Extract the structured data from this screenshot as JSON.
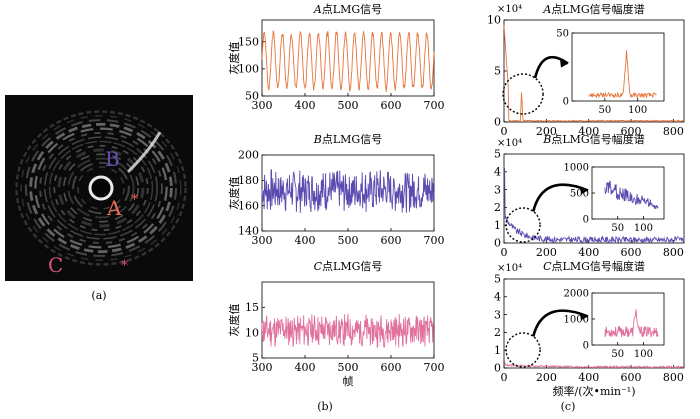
{
  "figure_labels": {
    "a": "(a)",
    "b": "(b)",
    "c": "(c)"
  },
  "colors": {
    "a": "#e8743b",
    "b": "#5b4bb0",
    "c": "#e0709c",
    "zoom": "#000000",
    "image_bg": "#0a0a0a"
  },
  "image_panel": {
    "point_labels": [
      {
        "text": "B",
        "color": "#6a4fb0"
      },
      {
        "text": "A",
        "color": "#e86a50"
      },
      {
        "text": "C",
        "color": "#d9557c"
      }
    ],
    "markers": [
      {
        "text": "*",
        "color": "#e86a50"
      },
      {
        "text": "*",
        "color": "#d9557c"
      }
    ]
  },
  "chart_data": [
    {
      "id": "b1",
      "type": "line",
      "title": "A点LMG信号",
      "title_italic": "A",
      "title_rest": "点LMG信号",
      "ylabel": "灰度值",
      "xlabel": "",
      "xlim": [
        300,
        700
      ],
      "ylim": [
        50,
        190
      ],
      "xticks": [
        300,
        400,
        500,
        600,
        700
      ],
      "yticks": [
        50,
        100,
        150
      ],
      "series": [
        {
          "color": "#e8743b",
          "kind": "periodic",
          "period": 21,
          "min": 60,
          "max": 170,
          "seed": 3
        }
      ]
    },
    {
      "id": "b2",
      "type": "line",
      "title": "B点LMG信号",
      "title_italic": "B",
      "title_rest": "点LMG信号",
      "ylabel": "灰度值",
      "xlabel": "",
      "xlim": [
        300,
        700
      ],
      "ylim": [
        140,
        200
      ],
      "xticks": [
        300,
        400,
        500,
        600,
        700
      ],
      "yticks": [
        140,
        160,
        180,
        200
      ],
      "series": [
        {
          "color": "#5b4bb0",
          "kind": "noisy",
          "mean": 172,
          "amp": 18,
          "seed": 7
        }
      ]
    },
    {
      "id": "b3",
      "type": "line",
      "title": "C点LMG信号",
      "title_italic": "C",
      "title_rest": "点LMG信号",
      "ylabel": "灰度值",
      "xlabel": "帧",
      "xlim": [
        300,
        700
      ],
      "ylim": [
        5,
        20
      ],
      "xticks": [
        300,
        400,
        500,
        600,
        700
      ],
      "yticks": [
        5,
        10,
        15
      ],
      "series": [
        {
          "color": "#e0709c",
          "kind": "noisy",
          "mean": 10.5,
          "amp": 3.5,
          "seed": 11
        }
      ]
    },
    {
      "id": "c1",
      "type": "line",
      "title": "A点LMG信号幅度谱",
      "title_italic": "A",
      "title_rest": "点LMG信号幅度谱",
      "ylabel": "",
      "xlabel": "",
      "xlim": [
        0,
        850
      ],
      "ylim": [
        0,
        10
      ],
      "yscale_label": "×10⁴",
      "xticks": [
        0,
        200,
        400,
        600,
        800
      ],
      "yticks": [
        0,
        5,
        10
      ],
      "series": [
        {
          "color": "#e8743b",
          "kind": "spectrum",
          "peak_at": 83,
          "seed": 5
        }
      ],
      "inset": {
        "xlim": [
          0,
          140
        ],
        "ylim": [
          0,
          50
        ],
        "xticks": [
          50,
          100
        ],
        "yticks": [
          0,
          50
        ],
        "peak_at": 83,
        "peak": 38,
        "base": 5
      }
    },
    {
      "id": "c2",
      "type": "line",
      "title": "B点LMG信号幅度谱",
      "title_italic": "B",
      "title_rest": "点LMG信号幅度谱",
      "ylabel": "",
      "xlabel": "",
      "xlim": [
        0,
        850
      ],
      "ylim": [
        0,
        5
      ],
      "yscale_label": "×10⁴",
      "xticks": [
        0,
        200,
        400,
        600,
        800
      ],
      "yticks": [
        0,
        1,
        2,
        3,
        4,
        5
      ],
      "series": [
        {
          "color": "#5b4bb0",
          "kind": "spectrum_decay",
          "seed": 9
        }
      ],
      "inset": {
        "xlim": [
          0,
          140
        ],
        "ylim": [
          0,
          1000
        ],
        "xticks": [
          50,
          100
        ],
        "yticks": [
          0,
          500,
          1000
        ],
        "peak_at": 40,
        "peak": 700,
        "base": 400
      }
    },
    {
      "id": "c3",
      "type": "line",
      "title": "C点LMG信号幅度谱",
      "title_italic": "C",
      "title_rest": "点LMG信号幅度谱",
      "ylabel": "",
      "xlabel": "频率/(次•min⁻¹)",
      "xlim": [
        0,
        850
      ],
      "ylim": [
        0,
        5
      ],
      "yscale_label": "×10⁴",
      "xticks": [
        0,
        200,
        400,
        600,
        800
      ],
      "yticks": [
        0,
        1,
        2,
        3,
        4,
        5
      ],
      "series": [
        {
          "color": "#e0709c",
          "kind": "spectrum_flat",
          "seed": 13
        }
      ],
      "inset": {
        "xlim": [
          0,
          140
        ],
        "ylim": [
          0,
          2000
        ],
        "xticks": [
          50,
          100
        ],
        "yticks": [
          0,
          1000,
          2000
        ],
        "peak_at": 85,
        "peak": 1500,
        "base": 600
      }
    }
  ]
}
